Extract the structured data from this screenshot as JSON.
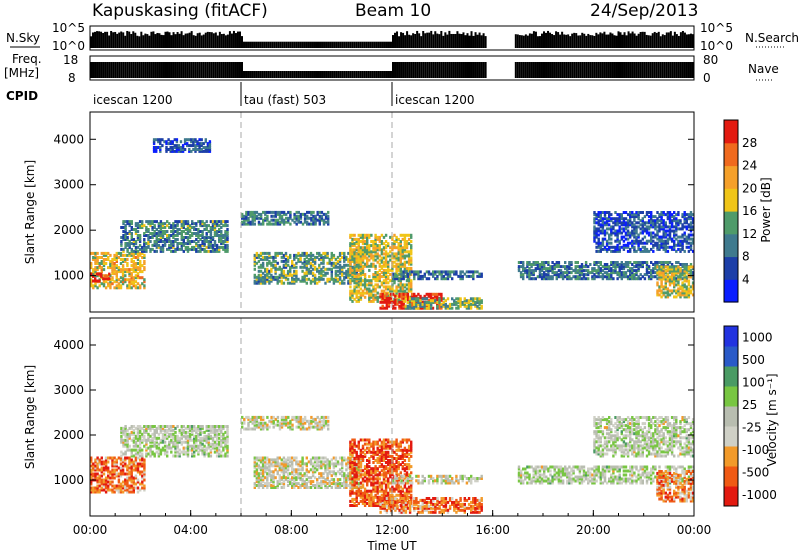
{
  "header": {
    "station": "Kapuskasing (fitACF)",
    "beam": "Beam 10",
    "date": "24/Sep/2013"
  },
  "colors": {
    "power": [
      "#0a1eff",
      "#1c3fa8",
      "#3f7a8e",
      "#4f9b6a",
      "#f0c518",
      "#f5a02a",
      "#f06a1e",
      "#e31a10"
    ],
    "velocity": [
      "#e31a10",
      "#f05a14",
      "#f29a2a",
      "#cfd0c6",
      "#b8bdb0",
      "#78c642",
      "#4a9b64",
      "#2a5ac8",
      "#2233e0"
    ]
  },
  "panels": {
    "nsky": {
      "label": "N.Sky",
      "ticks": [
        "10^5",
        "10^0"
      ]
    },
    "nsearch": {
      "label": "N.Search",
      "ticks": [
        "10^5",
        "10^0"
      ]
    },
    "freq": {
      "label_top": "Freq.",
      "label_unit": "[MHz]",
      "ticks": [
        "18",
        "8"
      ]
    },
    "nave": {
      "label": "Nave",
      "ticks": [
        "80",
        "0"
      ]
    },
    "cpid": {
      "label": "CPID",
      "modes": [
        {
          "name": "icescan 1200",
          "start_h": 0,
          "end_h": 6
        },
        {
          "name": "tau (fast) 503",
          "start_h": 6,
          "end_h": 12
        },
        {
          "name": "icescan 1200",
          "start_h": 12,
          "end_h": 24
        }
      ]
    }
  },
  "chart_data": [
    {
      "type": "heatmap",
      "name": "power",
      "xlabel": "",
      "ylabel": "Slant Range [km]",
      "x_range_h": [
        0,
        24
      ],
      "ylim": [
        200,
        4600
      ],
      "y_ticks": [
        "4000",
        "3000",
        "2000",
        "1000"
      ],
      "y_tick_values": [
        4000,
        3000,
        2000,
        1000
      ],
      "colorbar_label": "Power [dB]",
      "colorbar_ticks": [
        "4",
        "8",
        "12",
        "16",
        "20",
        "24",
        "28"
      ],
      "colorbar_range": [
        0,
        30
      ],
      "data_gap_h": [
        15.7,
        16.8
      ],
      "echo_regions": [
        {
          "t0": 0.0,
          "t1": 2.2,
          "r0": 700,
          "r1": 1500,
          "level": 0.6
        },
        {
          "t0": 0.0,
          "t1": 0.8,
          "r0": 850,
          "r1": 1050,
          "level": 0.95
        },
        {
          "t0": 1.2,
          "t1": 5.5,
          "r0": 1500,
          "r1": 2200,
          "level": 0.35
        },
        {
          "t0": 2.5,
          "t1": 4.8,
          "r0": 3700,
          "r1": 4000,
          "level": 0.2
        },
        {
          "t0": 6.0,
          "t1": 9.5,
          "r0": 2100,
          "r1": 2400,
          "level": 0.3
        },
        {
          "t0": 6.5,
          "t1": 10.8,
          "r0": 800,
          "r1": 1500,
          "level": 0.4
        },
        {
          "t0": 10.3,
          "t1": 12.8,
          "r0": 400,
          "r1": 1900,
          "level": 0.55
        },
        {
          "t0": 11.5,
          "t1": 14.0,
          "r0": 250,
          "r1": 600,
          "level": 0.95
        },
        {
          "t0": 12.0,
          "t1": 15.6,
          "r0": 900,
          "r1": 1100,
          "level": 0.3
        },
        {
          "t0": 12.5,
          "t1": 15.6,
          "r0": 250,
          "r1": 500,
          "level": 0.45
        },
        {
          "t0": 17.0,
          "t1": 24.0,
          "r0": 900,
          "r1": 1300,
          "level": 0.3
        },
        {
          "t0": 20.0,
          "t1": 24.0,
          "r0": 1500,
          "r1": 2400,
          "level": 0.2
        },
        {
          "t0": 22.5,
          "t1": 24.0,
          "r0": 500,
          "r1": 1200,
          "level": 0.55
        }
      ]
    },
    {
      "type": "heatmap",
      "name": "velocity",
      "xlabel": "Time UT",
      "ylabel": "Slant Range [km]",
      "x_range_h": [
        0,
        24
      ],
      "x_ticks": [
        "00:00",
        "04:00",
        "08:00",
        "12:00",
        "16:00",
        "20:00",
        "00:00"
      ],
      "x_tick_values": [
        0,
        4,
        8,
        12,
        16,
        20,
        24
      ],
      "ylim": [
        200,
        4600
      ],
      "y_ticks": [
        "4000",
        "3000",
        "2000",
        "1000"
      ],
      "y_tick_values": [
        4000,
        3000,
        2000,
        1000
      ],
      "colorbar_label": "Velocity [m s⁻¹]",
      "colorbar_ticks": [
        "1000",
        "500",
        "100",
        "25",
        "-25",
        "-100",
        "-500",
        "-1000"
      ],
      "data_gap_h": [
        15.7,
        16.8
      ],
      "echo_regions": [
        {
          "t0": 0.0,
          "t1": 2.2,
          "r0": 700,
          "r1": 1500,
          "level": 0.2
        },
        {
          "t0": 1.2,
          "t1": 5.5,
          "r0": 1500,
          "r1": 2200,
          "level": 0.5
        },
        {
          "t0": 6.0,
          "t1": 9.5,
          "r0": 2100,
          "r1": 2400,
          "level": 0.45
        },
        {
          "t0": 6.5,
          "t1": 10.8,
          "r0": 800,
          "r1": 1500,
          "level": 0.45
        },
        {
          "t0": 10.3,
          "t1": 12.8,
          "r0": 400,
          "r1": 1900,
          "level": 0.15
        },
        {
          "t0": 11.5,
          "t1": 15.6,
          "r0": 250,
          "r1": 600,
          "level": 0.2
        },
        {
          "t0": 12.0,
          "t1": 15.6,
          "r0": 900,
          "r1": 1100,
          "level": 0.45
        },
        {
          "t0": 17.0,
          "t1": 24.0,
          "r0": 900,
          "r1": 1300,
          "level": 0.5
        },
        {
          "t0": 20.0,
          "t1": 24.0,
          "r0": 1500,
          "r1": 2400,
          "level": 0.5
        },
        {
          "t0": 22.5,
          "t1": 24.0,
          "r0": 500,
          "r1": 1200,
          "level": 0.25
        }
      ]
    }
  ]
}
